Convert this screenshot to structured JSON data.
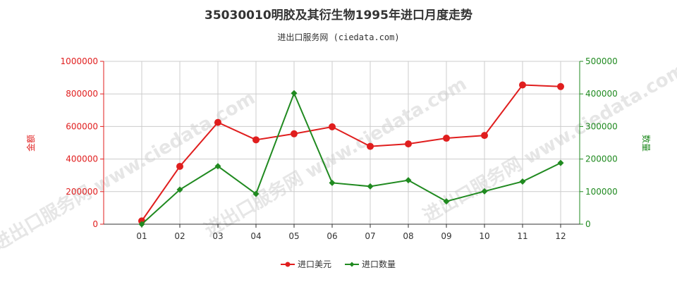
{
  "title": "35030010明胶及其衍生物1995年进口月度走势",
  "subtitle": "进出口服务网 (ciedata.com)",
  "watermark": "进出口服务网 www.ciedata.com",
  "colors": {
    "usd": "#e01e1e",
    "qty": "#208a20",
    "grid": "#cccccc",
    "axis": "#333333"
  },
  "chart_data": {
    "type": "line",
    "categories": [
      "01",
      "02",
      "03",
      "04",
      "05",
      "06",
      "07",
      "08",
      "09",
      "10",
      "11",
      "12"
    ],
    "y_left": {
      "label": "金额",
      "ylim": [
        0,
        1000000
      ],
      "ticks": [
        "0",
        "200000",
        "400000",
        "600000",
        "800000",
        "1000000"
      ]
    },
    "y_right": {
      "label": "数量",
      "ylim": [
        0,
        500000
      ],
      "ticks": [
        "0",
        "100000",
        "200000",
        "300000",
        "400000",
        "500000"
      ]
    },
    "grid": true,
    "legend_position": "bottom-center",
    "series": [
      {
        "name": "进口美元",
        "axis": "left",
        "marker": "circle",
        "values": [
          20000,
          355000,
          625000,
          518000,
          555000,
          598000,
          478000,
          493000,
          528000,
          545000,
          855000,
          845000
        ]
      },
      {
        "name": "进口数量",
        "axis": "right",
        "marker": "diamond",
        "values": [
          0,
          106000,
          178000,
          93000,
          402000,
          127000,
          116000,
          135000,
          70000,
          101000,
          131000,
          188000
        ]
      }
    ]
  }
}
